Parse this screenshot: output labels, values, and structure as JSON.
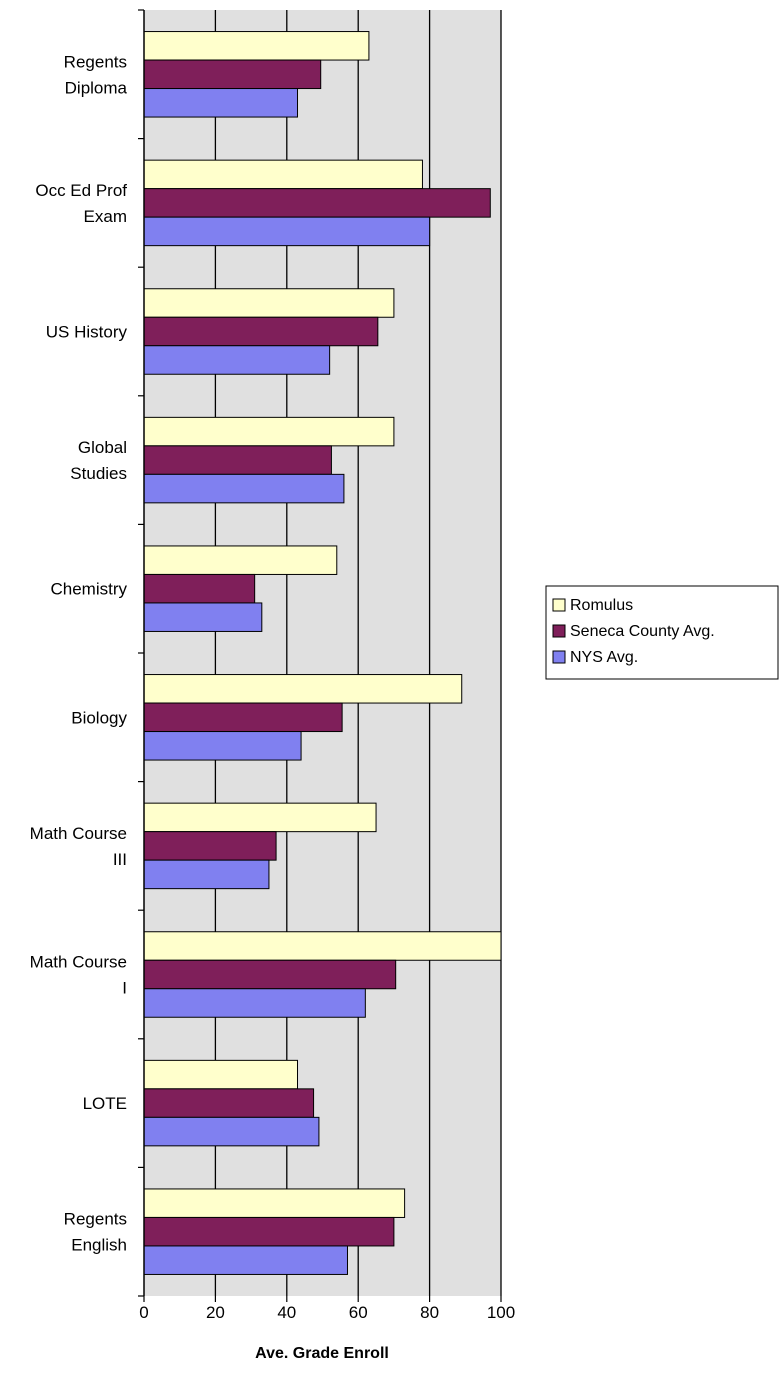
{
  "chart_data": {
    "type": "bar",
    "orientation": "horizontal",
    "categories": [
      [
        "Regents",
        "Diploma"
      ],
      [
        "Occ Ed Prof",
        "Exam"
      ],
      [
        "US History"
      ],
      [
        "Global",
        "Studies"
      ],
      [
        "Chemistry"
      ],
      [
        "Biology"
      ],
      [
        "Math Course",
        "III"
      ],
      [
        "Math Course",
        "I"
      ],
      [
        "LOTE"
      ],
      [
        "Regents",
        "English"
      ]
    ],
    "series": [
      {
        "name": "Romulus",
        "color": "#ffffcc",
        "values": [
          63,
          78,
          70,
          70,
          54,
          89,
          65,
          100,
          43,
          73
        ]
      },
      {
        "name": "Seneca County Avg.",
        "color": "#7f1f5a",
        "values": [
          49.5,
          97,
          65.5,
          52.5,
          31,
          55.5,
          37,
          70.5,
          47.5,
          70
        ]
      },
      {
        "name": "NYS Avg.",
        "color": "#8080f0",
        "values": [
          43,
          80,
          52,
          56,
          33,
          44,
          35,
          62,
          49,
          57
        ]
      }
    ],
    "xlabel": "Ave. Grade Enroll",
    "xlim": [
      0,
      100
    ],
    "xticks": [
      0,
      20,
      40,
      60,
      80,
      100
    ],
    "plot_background": "#e0e0e0",
    "grid": true,
    "legend_position": "right"
  }
}
